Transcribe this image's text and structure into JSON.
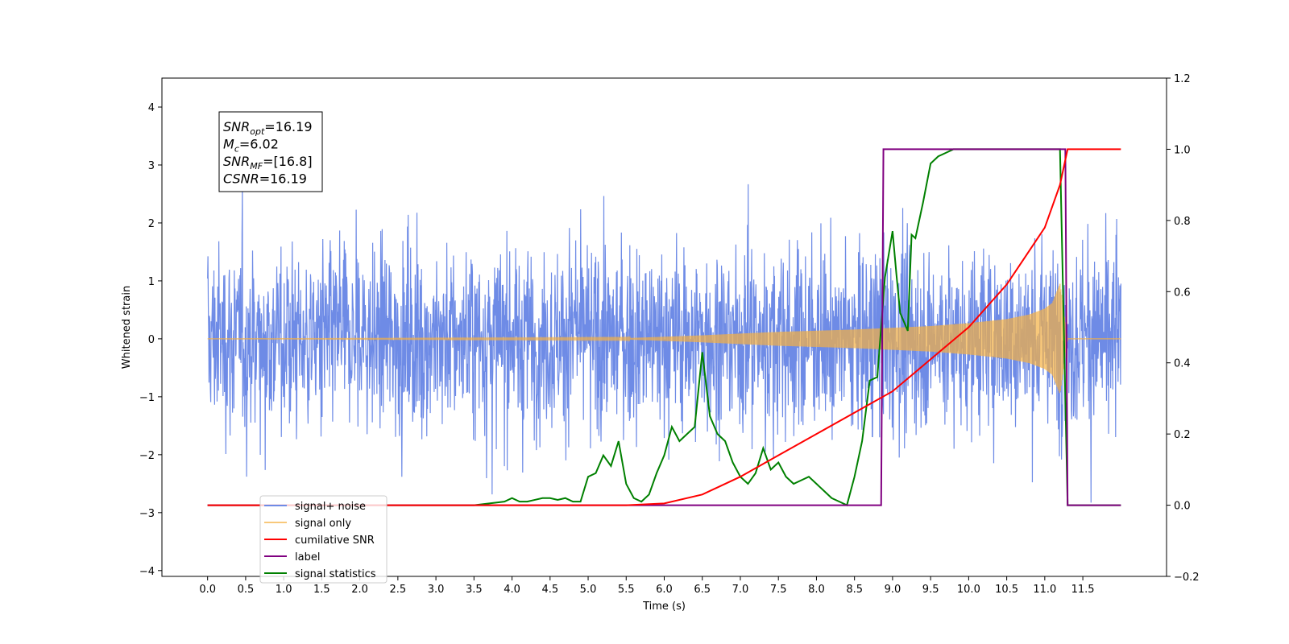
{
  "chart_data": {
    "type": "line",
    "title": "",
    "xlabel": "Time (s)",
    "ylabel": "Whitened strain",
    "y2label": "",
    "xlim": [
      -0.6,
      12.6
    ],
    "ylim": [
      -4.1,
      4.5
    ],
    "y2lim": [
      -0.2,
      1.2
    ],
    "x_ticks": [
      "0.0",
      "0.5",
      "1.0",
      "1.5",
      "2.0",
      "2.5",
      "3.0",
      "3.5",
      "4.0",
      "4.5",
      "5.0",
      "5.5",
      "6.0",
      "6.5",
      "7.0",
      "7.5",
      "8.0",
      "8.5",
      "9.0",
      "9.5",
      "10.0",
      "10.5",
      "11.0",
      "11.5"
    ],
    "y_ticks": [
      "−4",
      "−3",
      "−2",
      "−1",
      "0",
      "1",
      "2",
      "3",
      "4"
    ],
    "y2_ticks": [
      "−0.2",
      "0.0",
      "0.2",
      "0.4",
      "0.6",
      "0.8",
      "1.0",
      "1.2"
    ],
    "grid": false,
    "legend_position": "lower-left",
    "annotation": {
      "lines": [
        {
          "base": "SNR",
          "sub": "opt",
          "rest": "=16.19"
        },
        {
          "base": "M",
          "sub": "c",
          "rest": "=6.02"
        },
        {
          "base": "SNR",
          "sub": "MF",
          "rest": "=[16.8]"
        },
        {
          "base": "CSNR",
          "sub": "",
          "rest": "=16.19"
        }
      ]
    },
    "series": [
      {
        "name": "signal+ noise",
        "axis": "left",
        "color": "#6e8be6",
        "description": "whitened noise, amplitude ~±2.5 with spikes to ±4, t = 0 to 12"
      },
      {
        "name": "signal only",
        "axis": "left",
        "color": "#f5b041",
        "envelope": {
          "t": [
            0,
            5.5,
            6.5,
            7.5,
            8.5,
            9.5,
            10.0,
            10.5,
            10.8,
            11.0,
            11.1,
            11.2,
            11.3
          ],
          "amp": [
            0.0,
            0.01,
            0.06,
            0.12,
            0.16,
            0.22,
            0.27,
            0.34,
            0.42,
            0.52,
            0.62,
            0.95,
            0.0
          ]
        }
      },
      {
        "name": "cumilative SNR",
        "axis": "right",
        "color": "#ff0000",
        "x": [
          0,
          5.5,
          6.0,
          6.5,
          7.0,
          7.5,
          8.0,
          8.5,
          9.0,
          9.5,
          10.0,
          10.5,
          11.0,
          11.2,
          11.3,
          12.0
        ],
        "y": [
          0,
          0.0,
          0.005,
          0.03,
          0.08,
          0.14,
          0.2,
          0.26,
          0.32,
          0.41,
          0.5,
          0.62,
          0.78,
          0.9,
          1.0,
          1.0
        ]
      },
      {
        "name": "label",
        "axis": "right",
        "color": "#800080",
        "x": [
          0,
          8.85,
          8.88,
          11.27,
          11.3,
          12.0
        ],
        "y": [
          0,
          0,
          1,
          1,
          0,
          0
        ]
      },
      {
        "name": "signal statistics",
        "axis": "right",
        "color": "#008000",
        "x": [
          0,
          2.5,
          3.5,
          3.9,
          4.0,
          4.1,
          4.2,
          4.3,
          4.4,
          4.5,
          4.6,
          4.7,
          4.8,
          4.9,
          5.0,
          5.1,
          5.2,
          5.3,
          5.4,
          5.5,
          5.6,
          5.7,
          5.8,
          5.9,
          6.0,
          6.1,
          6.2,
          6.3,
          6.4,
          6.5,
          6.6,
          6.7,
          6.8,
          6.9,
          7.0,
          7.1,
          7.2,
          7.3,
          7.4,
          7.5,
          7.6,
          7.7,
          7.8,
          7.9,
          8.0,
          8.1,
          8.2,
          8.3,
          8.4,
          8.5,
          8.6,
          8.7,
          8.8,
          8.9,
          9.0,
          9.05,
          9.1,
          9.2,
          9.25,
          9.3,
          9.4,
          9.5,
          9.6,
          9.7,
          9.8,
          10.0,
          11.0,
          11.2,
          11.3,
          12.0
        ],
        "y": [
          0,
          0,
          0,
          0.01,
          0.02,
          0.01,
          0.01,
          0.015,
          0.02,
          0.02,
          0.015,
          0.02,
          0.01,
          0.01,
          0.08,
          0.09,
          0.14,
          0.11,
          0.18,
          0.06,
          0.02,
          0.01,
          0.03,
          0.09,
          0.14,
          0.22,
          0.18,
          0.2,
          0.22,
          0.43,
          0.25,
          0.2,
          0.18,
          0.12,
          0.08,
          0.06,
          0.09,
          0.16,
          0.1,
          0.12,
          0.08,
          0.06,
          0.07,
          0.08,
          0.06,
          0.04,
          0.02,
          0.01,
          0.0,
          0.08,
          0.18,
          0.35,
          0.36,
          0.64,
          0.77,
          0.65,
          0.54,
          0.49,
          0.76,
          0.75,
          0.85,
          0.96,
          0.98,
          0.99,
          1.0,
          1.0,
          1.0,
          1.0,
          0.0,
          0.0
        ]
      }
    ]
  }
}
